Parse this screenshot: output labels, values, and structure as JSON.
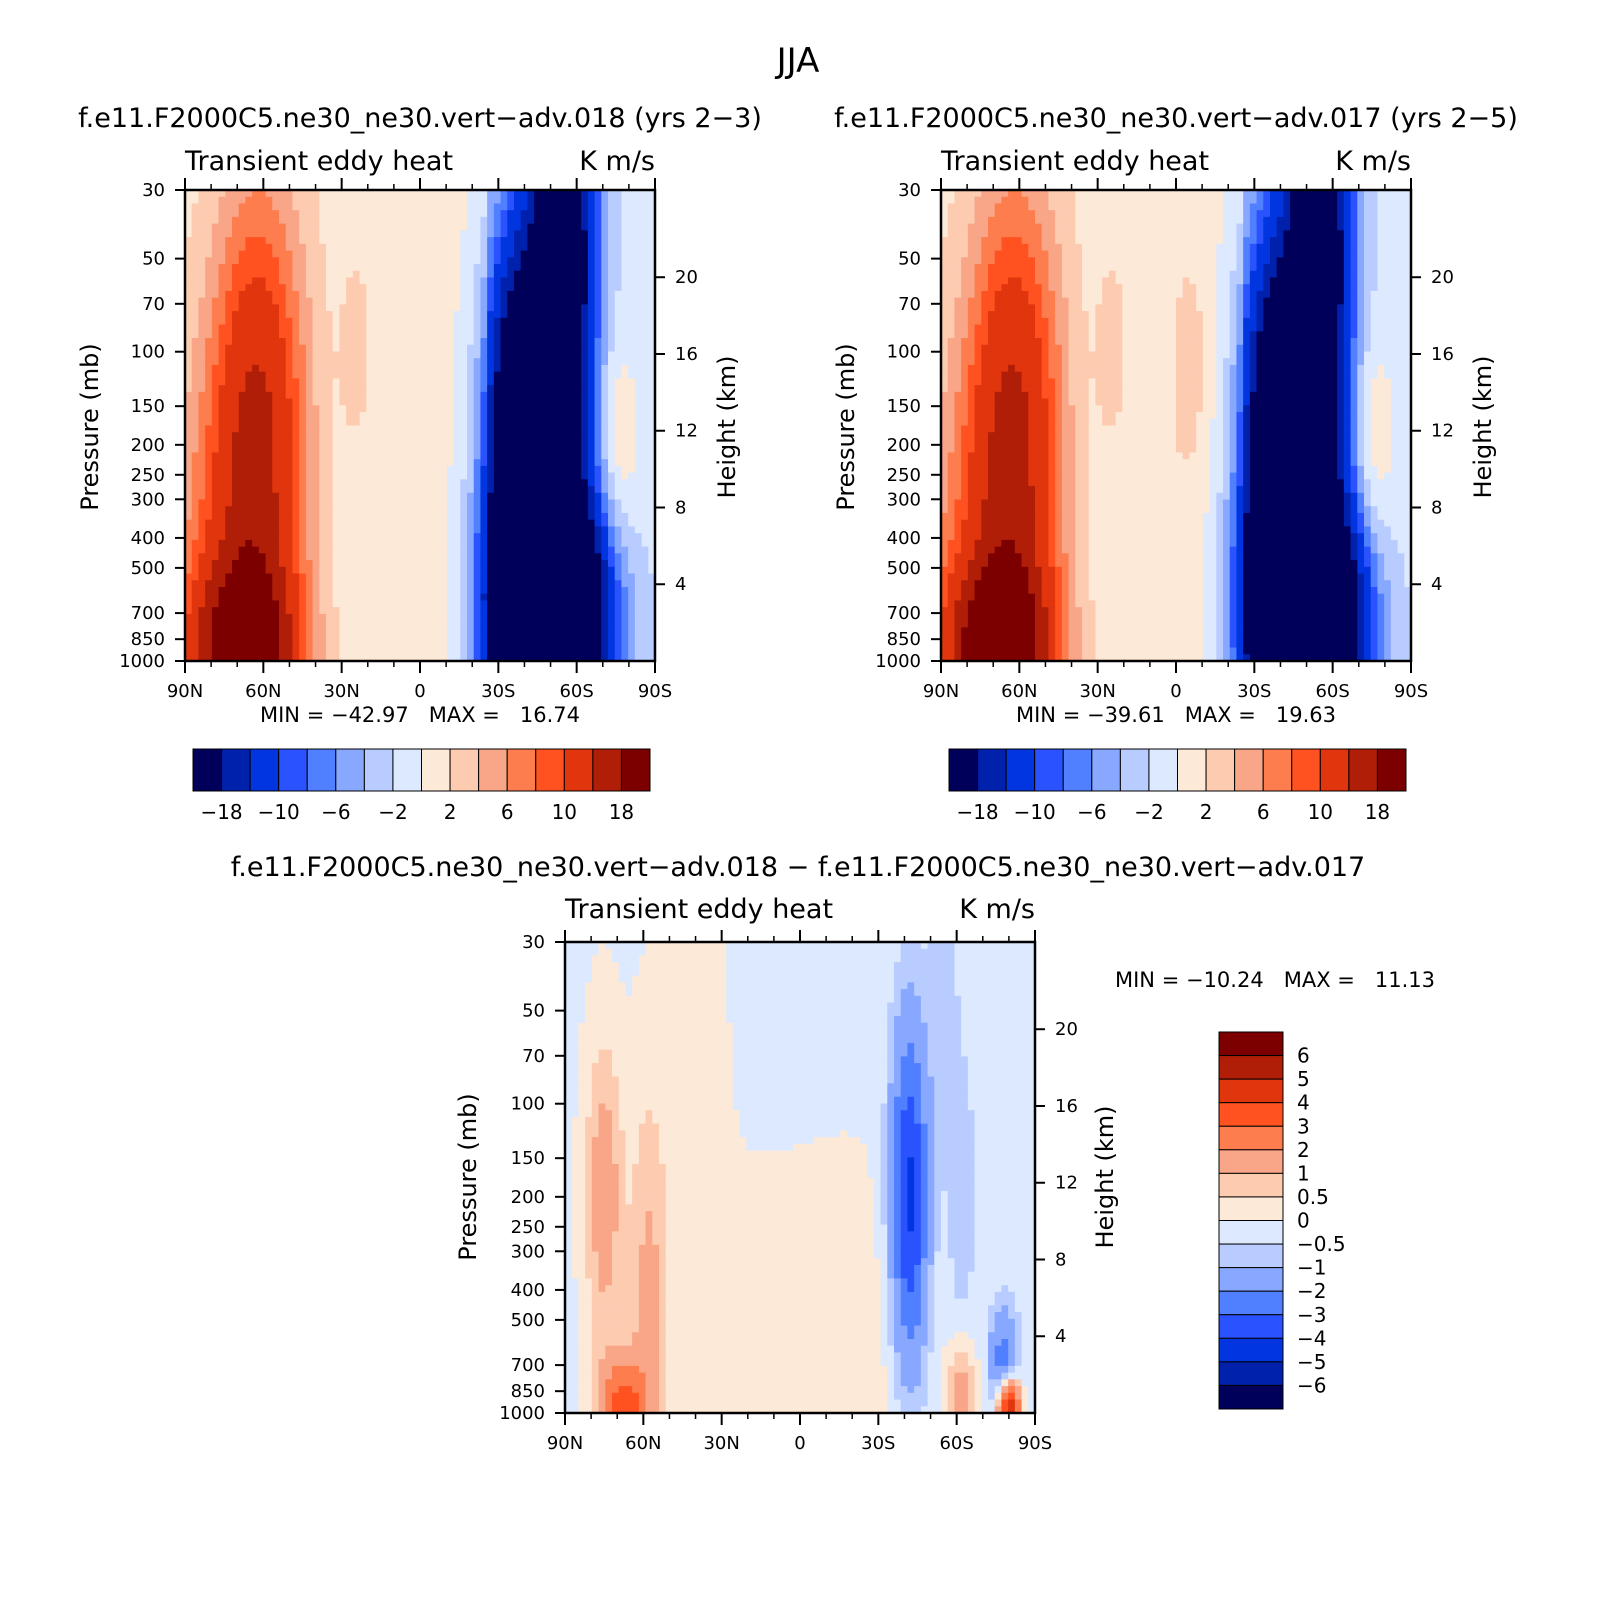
{
  "figure": {
    "title": "JJA"
  },
  "colors": {
    "palette_top": [
      "#00005a",
      "#0021ac",
      "#0035e0",
      "#2a52ff",
      "#5080ff",
      "#88a8ff",
      "#b8ccff",
      "#dce9ff",
      "#fde9d8",
      "#fccbb0",
      "#f9a587",
      "#fd7d4e",
      "#ff5220",
      "#e0350d",
      "#b01e08",
      "#7d0000"
    ],
    "palette_diff": [
      "#00005a",
      "#0021ac",
      "#0035e0",
      "#2a52ff",
      "#5080ff",
      "#88a8ff",
      "#b8ccff",
      "#dce9ff",
      "#fde9d8",
      "#fccbb0",
      "#f9a587",
      "#fd7d4e",
      "#ff5220",
      "#e0350d",
      "#b01e08",
      "#7d0000"
    ]
  },
  "chart_data": [
    {
      "type": "heatmap",
      "title": "f.e11.F2000C5.ne30_ne30.vert−adv.018 (yrs 2−3)",
      "left_string": "Transient eddy heat",
      "right_string": "K m/s",
      "xlabel": "",
      "ylabel": "Pressure (mb)",
      "y2label": "Height (km)",
      "x_ticks": [
        "90N",
        "60N",
        "30N",
        "0",
        "30S",
        "60S",
        "90S"
      ],
      "y_ticks": [
        30,
        50,
        70,
        100,
        150,
        200,
        250,
        300,
        400,
        500,
        700,
        850,
        1000
      ],
      "y2_ticks": [
        20,
        16,
        12,
        8,
        4
      ],
      "ylim": [
        1000,
        30
      ],
      "y_scale": "log",
      "stats": "MIN = −42.97   MAX =   16.74",
      "min": -42.97,
      "max": 16.74,
      "colorbar_labels": [
        "−18",
        "−10",
        "−6",
        "−2",
        "2",
        "6",
        "10",
        "18"
      ],
      "features": [
        {
          "lat": 62,
          "p": 170,
          "val": 12,
          "width": 13,
          "depth": 1.3
        },
        {
          "lat": 68,
          "p": 950,
          "val": 15,
          "width": 15,
          "depth": 0.45
        },
        {
          "lat": 72,
          "p": 600,
          "val": 6,
          "width": 18,
          "depth": 1.2
        },
        {
          "lat": 24,
          "p": 110,
          "val": 2.5,
          "width": 5,
          "depth": 0.6
        },
        {
          "lat": -75,
          "p": 200,
          "val": 4,
          "width": 6,
          "depth": 0.6
        },
        {
          "lat": 6,
          "p": 500,
          "val": 1.5,
          "width": 10,
          "depth": 1.5
        },
        {
          "lat": -50,
          "p": 760,
          "val": -42,
          "width": 14,
          "depth": 0.6
        },
        {
          "lat": -38,
          "p": 200,
          "val": -22,
          "width": 8,
          "depth": 1.0
        },
        {
          "lat": -55,
          "p": 40,
          "val": -24,
          "width": 8,
          "depth": 1.4
        },
        {
          "lat": -45,
          "p": 400,
          "val": -14,
          "width": 14,
          "depth": 1.6
        },
        {
          "lat": 18,
          "p": 280,
          "val": -1.5,
          "width": 12,
          "depth": 1.0
        }
      ],
      "background": 0.8,
      "background_south": -1.2
    },
    {
      "type": "heatmap",
      "title": "f.e11.F2000C5.ne30_ne30.vert−adv.017 (yrs 2−5)",
      "left_string": "Transient eddy heat",
      "right_string": "K m/s",
      "xlabel": "",
      "ylabel": "Pressure (mb)",
      "y2label": "Height (km)",
      "x_ticks": [
        "90N",
        "60N",
        "30N",
        "0",
        "30S",
        "60S",
        "90S"
      ],
      "y_ticks": [
        30,
        50,
        70,
        100,
        150,
        200,
        250,
        300,
        400,
        500,
        700,
        850,
        1000
      ],
      "y2_ticks": [
        20,
        16,
        12,
        8,
        4
      ],
      "ylim": [
        1000,
        30
      ],
      "y_scale": "log",
      "stats": "MIN = −39.61   MAX =   19.63",
      "min": -39.61,
      "max": 19.63,
      "colorbar_labels": [
        "−18",
        "−10",
        "−6",
        "−2",
        "2",
        "6",
        "10",
        "18"
      ],
      "features": [
        {
          "lat": 62,
          "p": 170,
          "val": 12,
          "width": 13,
          "depth": 1.3
        },
        {
          "lat": 68,
          "p": 950,
          "val": 16,
          "width": 15,
          "depth": 0.45
        },
        {
          "lat": 72,
          "p": 600,
          "val": 6,
          "width": 18,
          "depth": 1.2
        },
        {
          "lat": 24,
          "p": 110,
          "val": 2.5,
          "width": 5,
          "depth": 0.6
        },
        {
          "lat": -6,
          "p": 110,
          "val": 2.0,
          "width": 5,
          "depth": 0.6
        },
        {
          "lat": -75,
          "p": 200,
          "val": 4,
          "width": 6,
          "depth": 0.6
        },
        {
          "lat": 6,
          "p": 500,
          "val": 1.5,
          "width": 10,
          "depth": 1.5
        },
        {
          "lat": -50,
          "p": 760,
          "val": -39,
          "width": 14,
          "depth": 0.6
        },
        {
          "lat": -38,
          "p": 200,
          "val": -20,
          "width": 8,
          "depth": 1.0
        },
        {
          "lat": -55,
          "p": 40,
          "val": -24,
          "width": 8,
          "depth": 1.4
        },
        {
          "lat": -45,
          "p": 400,
          "val": -14,
          "width": 14,
          "depth": 1.6
        },
        {
          "lat": 18,
          "p": 280,
          "val": -1.5,
          "width": 12,
          "depth": 1.0
        }
      ],
      "background": 0.8,
      "background_south": -1.2
    },
    {
      "type": "heatmap",
      "title": "f.e11.F2000C5.ne30_ne30.vert−adv.018 − f.e11.F2000C5.ne30_ne30.vert−adv.017",
      "left_string": "Transient eddy heat",
      "right_string": "K m/s",
      "xlabel": "",
      "ylabel": "Pressure (mb)",
      "y2label": "Height (km)",
      "x_ticks": [
        "90N",
        "60N",
        "30N",
        "0",
        "30S",
        "60S",
        "90S"
      ],
      "y_ticks": [
        30,
        50,
        70,
        100,
        150,
        200,
        250,
        300,
        400,
        500,
        700,
        850,
        1000
      ],
      "y2_ticks": [
        20,
        16,
        12,
        8,
        4
      ],
      "ylim": [
        1000,
        30
      ],
      "y_scale": "log",
      "stats": "MIN = −10.24   MAX =   11.13",
      "min": -10.24,
      "max": 11.13,
      "colorbar_labels": [
        "6",
        "5",
        "4",
        "3",
        "2",
        "1",
        "0.5",
        "0",
        "−0.5",
        "−1",
        "−2",
        "−3",
        "−4",
        "−5",
        "−6"
      ],
      "features": [
        {
          "lat": 75,
          "p": 200,
          "val": 1.6,
          "width": 5,
          "depth": 0.8
        },
        {
          "lat": 58,
          "p": 500,
          "val": 1.3,
          "width": 5,
          "depth": 1.2
        },
        {
          "lat": 68,
          "p": 950,
          "val": 3.5,
          "width": 6,
          "depth": 0.25
        },
        {
          "lat": -42,
          "p": 200,
          "val": -4.2,
          "width": 5,
          "depth": 0.9
        },
        {
          "lat": -62,
          "p": 200,
          "val": -0.8,
          "width": 4,
          "depth": 0.8
        },
        {
          "lat": -55,
          "p": 40,
          "val": -0.7,
          "width": 4,
          "depth": 0.8
        },
        {
          "lat": 20,
          "p": 600,
          "val": 0.4,
          "width": 20,
          "depth": 0.8
        },
        {
          "lat": -20,
          "p": 700,
          "val": 0.4,
          "width": 18,
          "depth": 1.0
        },
        {
          "lat": 40,
          "p": 100,
          "val": 0.4,
          "width": 8,
          "depth": 1.2
        },
        {
          "lat": -80,
          "p": 950,
          "val": 6,
          "width": 3,
          "depth": 0.15
        },
        {
          "lat": -78,
          "p": 700,
          "val": -2.5,
          "width": 4,
          "depth": 0.3
        },
        {
          "lat": -62,
          "p": 900,
          "val": 1.6,
          "width": 4,
          "depth": 0.3
        }
      ],
      "background": -0.1,
      "background_south": -0.1
    }
  ]
}
